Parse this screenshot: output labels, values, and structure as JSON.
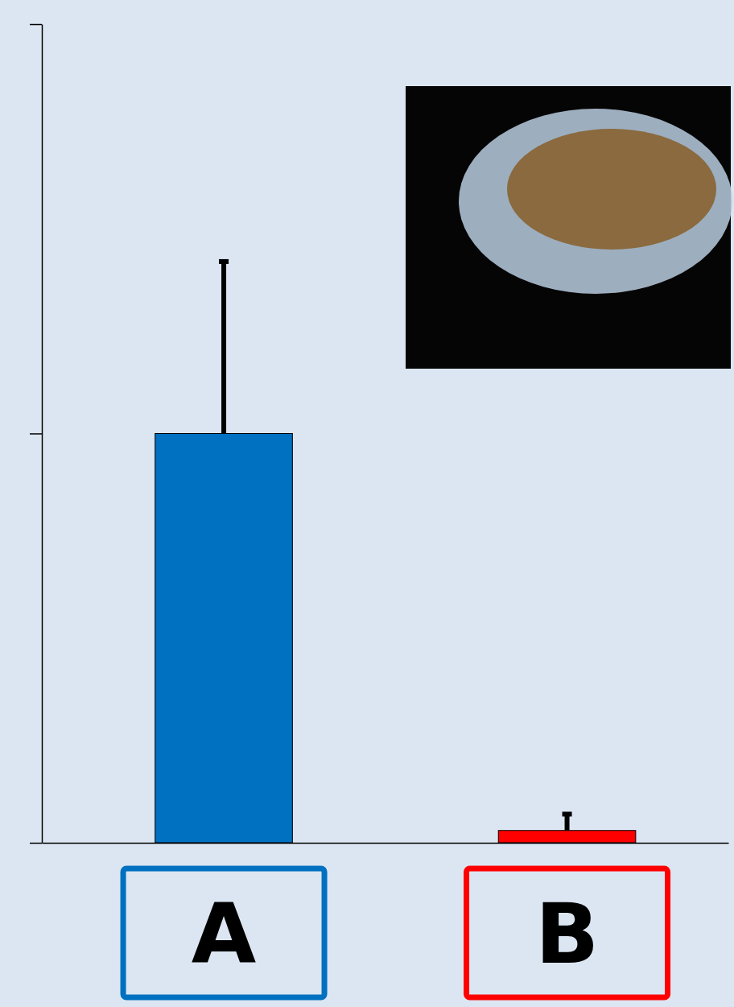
{
  "chart_data": {
    "type": "bar",
    "categories": [
      "A",
      "B"
    ],
    "values": [
      1.0,
      0.03
    ],
    "errors": [
      0.42,
      0.04
    ],
    "colors": [
      "#0070c0",
      "#ff0000"
    ],
    "ylim": [
      0,
      2
    ],
    "yticks": [
      0,
      1,
      2
    ],
    "tick_labels": "x"
  }
}
